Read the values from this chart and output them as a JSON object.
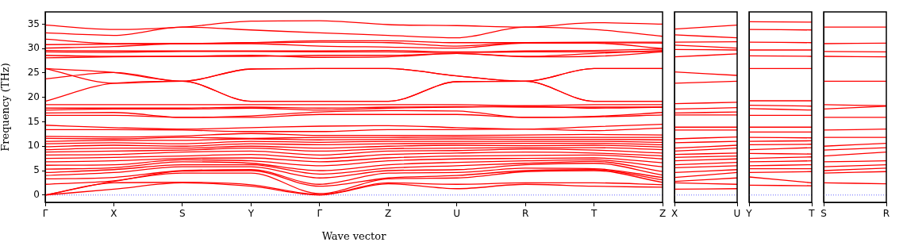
{
  "chart_data": [
    {
      "type": "line",
      "xlabel": "Wave vector",
      "ylabel": "Frequency (THz)",
      "marker": "none",
      "line_style": "solid",
      "categories": [
        "Γ",
        "X",
        "S",
        "Y",
        "Γ",
        "Z",
        "U",
        "R",
        "T",
        "Z"
      ],
      "ylim": [
        -1.5,
        37.5
      ],
      "yticks": [
        0,
        5,
        10,
        15,
        20,
        25,
        30,
        35
      ],
      "ref_lines": [
        {
          "axis": "y",
          "value": 0,
          "color": "#6666ff",
          "line_style": "dotted"
        }
      ],
      "series": [
        {
          "color": "#ff0000",
          "values": [
            0,
            1.2,
            2.5,
            1.8,
            0,
            2.3,
            1.3,
            2.2,
            1.8,
            1.6
          ]
        },
        {
          "color": "#ff0000",
          "values": [
            0,
            2.5,
            2.6,
            2.1,
            0.1,
            2.5,
            2.2,
            2.5,
            2.5,
            2.1
          ]
        },
        {
          "color": "#ff0000",
          "values": [
            0,
            2.8,
            4.5,
            4.5,
            0.3,
            3.3,
            3.5,
            4.8,
            5.0,
            2.6
          ]
        },
        {
          "color": "#ff0000",
          "values": [
            2.2,
            2.9,
            4.9,
            5.0,
            1.8,
            3.5,
            4.0,
            5.0,
            5.2,
            3.1
          ]
        },
        {
          "color": "#ff0000",
          "values": [
            3.3,
            3.6,
            5.0,
            5.2,
            2.2,
            4.5,
            4.6,
            5.5,
            5.4,
            3.6
          ]
        },
        {
          "color": "#ff0000",
          "values": [
            4.0,
            4.6,
            5.8,
            5.8,
            3.5,
            5.0,
            5.2,
            6.2,
            6.5,
            4.1
          ]
        },
        {
          "color": "#ff0000",
          "values": [
            4.6,
            5.2,
            6.2,
            6.2,
            4.3,
            5.5,
            6.0,
            6.5,
            6.9,
            4.8
          ]
        },
        {
          "color": "#ff0000",
          "values": [
            5.3,
            5.6,
            6.8,
            6.5,
            5.0,
            6.2,
            6.7,
            7.0,
            7.2,
            5.8
          ]
        },
        {
          "color": "#ff0000",
          "values": [
            6.1,
            6.2,
            7.2,
            7.0,
            6.0,
            7.0,
            7.4,
            7.5,
            7.6,
            6.6
          ]
        },
        {
          "color": "#ff0000",
          "values": [
            6.8,
            7.0,
            7.5,
            7.6,
            6.8,
            7.6,
            8.0,
            8.1,
            8.2,
            7.4
          ]
        },
        {
          "color": "#ff0000",
          "values": [
            7.5,
            7.7,
            8.0,
            8.3,
            7.5,
            8.3,
            8.6,
            8.8,
            8.6,
            8.0
          ]
        },
        {
          "color": "#ff0000",
          "values": [
            8.2,
            8.3,
            8.8,
            9.0,
            8.2,
            9.0,
            9.1,
            9.4,
            9.2,
            8.6
          ]
        },
        {
          "color": "#ff0000",
          "values": [
            8.8,
            9.0,
            9.2,
            9.6,
            9.0,
            9.5,
            9.6,
            9.7,
            9.7,
            9.3
          ]
        },
        {
          "color": "#ff0000",
          "values": [
            9.3,
            9.6,
            9.6,
            10.0,
            9.6,
            10.0,
            10.2,
            10.1,
            10.2,
            9.8
          ]
        },
        {
          "color": "#ff0000",
          "values": [
            9.9,
            10.2,
            10.0,
            10.5,
            10.3,
            10.5,
            10.6,
            10.6,
            10.6,
            10.3
          ]
        },
        {
          "color": "#ff0000",
          "values": [
            10.5,
            10.7,
            10.5,
            11.0,
            10.8,
            11.0,
            11.0,
            11.0,
            11.0,
            10.8
          ]
        },
        {
          "color": "#ff0000",
          "values": [
            11.0,
            11.2,
            11.2,
            11.5,
            11.3,
            11.4,
            11.5,
            11.4,
            11.4,
            11.3
          ]
        },
        {
          "color": "#ff0000",
          "values": [
            11.6,
            11.5,
            11.8,
            11.6,
            11.8,
            11.8,
            11.9,
            11.8,
            11.8,
            11.8
          ]
        },
        {
          "color": "#ff0000",
          "values": [
            12.0,
            11.9,
            12.1,
            12.6,
            12.2,
            12.2,
            12.2,
            12.3,
            12.4,
            12.3
          ]
        },
        {
          "color": "#ff0000",
          "values": [
            13.4,
            13.4,
            13.3,
            13.0,
            13.0,
            13.4,
            13.4,
            13.5,
            13.2,
            13.7
          ]
        },
        {
          "color": "#ff0000",
          "values": [
            14.3,
            13.8,
            13.5,
            13.8,
            14.1,
            14.2,
            13.8,
            13.5,
            14.0,
            14.5
          ]
        },
        {
          "color": "#ff0000",
          "values": [
            16.3,
            16.3,
            15.9,
            15.9,
            16.5,
            16.5,
            16.5,
            15.9,
            16.0,
            16.4
          ]
        },
        {
          "color": "#ff0000",
          "values": [
            16.8,
            16.9,
            15.9,
            16.2,
            17.0,
            17.3,
            17.2,
            15.9,
            16.1,
            16.9
          ]
        },
        {
          "color": "#ff0000",
          "values": [
            17.4,
            17.6,
            17.6,
            17.8,
            17.4,
            17.8,
            18.0,
            18.2,
            17.8,
            18.0
          ]
        },
        {
          "color": "#ff0000",
          "values": [
            17.8,
            17.8,
            17.8,
            18.0,
            17.8,
            18.0,
            18.1,
            18.0,
            18.0,
            18.0
          ]
        },
        {
          "color": "#ff0000",
          "values": [
            18.5,
            18.5,
            18.5,
            18.5,
            18.5,
            18.5,
            18.5,
            18.3,
            18.5,
            18.5
          ]
        },
        {
          "color": "#ff0000",
          "values": [
            19.2,
            22.9,
            23.3,
            19.2,
            19.2,
            19.2,
            23.2,
            23.3,
            19.2,
            19.2
          ]
        },
        {
          "color": "#ff0000",
          "values": [
            25.9,
            22.9,
            23.3,
            19.2,
            19.2,
            19.2,
            23.2,
            23.3,
            19.2,
            19.2
          ]
        },
        {
          "color": "#ff0000",
          "values": [
            23.8,
            25.1,
            23.3,
            25.8,
            25.9,
            25.9,
            24.4,
            23.3,
            25.9,
            25.9
          ]
        },
        {
          "color": "#ff0000",
          "values": [
            25.9,
            25.1,
            23.3,
            25.8,
            25.9,
            25.9,
            24.4,
            23.3,
            25.9,
            25.9
          ]
        },
        {
          "color": "#ff0000",
          "values": [
            28.1,
            28.3,
            28.4,
            28.6,
            28.2,
            28.3,
            29.0,
            28.3,
            28.4,
            29.3
          ]
        },
        {
          "color": "#ff0000",
          "values": [
            28.6,
            28.4,
            28.4,
            28.4,
            28.6,
            28.6,
            29.0,
            28.4,
            29.0,
            29.6
          ]
        },
        {
          "color": "#ff0000",
          "values": [
            29.3,
            29.2,
            29.4,
            29.4,
            29.3,
            29.3,
            29.2,
            29.3,
            29.3,
            29.4
          ]
        },
        {
          "color": "#ff0000",
          "values": [
            29.6,
            29.5,
            29.5,
            29.5,
            29.5,
            29.6,
            29.3,
            29.5,
            29.6,
            29.9
          ]
        },
        {
          "color": "#ff0000",
          "values": [
            30.1,
            30.4,
            31.0,
            31.0,
            30.5,
            30.3,
            30.1,
            31.1,
            31.1,
            30.0
          ]
        },
        {
          "color": "#ff0000",
          "values": [
            30.8,
            30.9,
            31.0,
            31.2,
            31.3,
            31.2,
            30.5,
            31.2,
            31.2,
            31.1
          ]
        },
        {
          "color": "#ff0000",
          "values": [
            31.9,
            31.0,
            31.0,
            31.2,
            31.6,
            31.6,
            31.2,
            31.2,
            31.3,
            31.3
          ]
        },
        {
          "color": "#ff0000",
          "values": [
            33.2,
            32.7,
            34.4,
            33.8,
            33.2,
            32.7,
            32.2,
            34.4,
            33.9,
            32.5
          ]
        },
        {
          "color": "#ff0000",
          "values": [
            34.8,
            33.9,
            34.4,
            35.6,
            35.7,
            34.9,
            34.7,
            34.4,
            35.3,
            35.0
          ]
        }
      ]
    },
    {
      "type": "line",
      "marker": "none",
      "line_style": "solid",
      "tick_labels": "x",
      "categories": [
        "X",
        "U"
      ],
      "ylim": [
        -1.5,
        37.5
      ],
      "ref_lines": [
        {
          "axis": "y",
          "value": 0,
          "color": "#6666ff",
          "line_style": "dotted"
        }
      ],
      "series": [
        {
          "color": "#ff0000",
          "values": [
            1.2,
            1.3
          ]
        },
        {
          "color": "#ff0000",
          "values": [
            2.5,
            2.2
          ]
        },
        {
          "color": "#ff0000",
          "values": [
            2.8,
            3.5
          ]
        },
        {
          "color": "#ff0000",
          "values": [
            3.6,
            4.6
          ]
        },
        {
          "color": "#ff0000",
          "values": [
            4.6,
            5.2
          ]
        },
        {
          "color": "#ff0000",
          "values": [
            5.6,
            6.0
          ]
        },
        {
          "color": "#ff0000",
          "values": [
            6.2,
            6.7
          ]
        },
        {
          "color": "#ff0000",
          "values": [
            7.0,
            7.4
          ]
        },
        {
          "color": "#ff0000",
          "values": [
            7.7,
            8.0
          ]
        },
        {
          "color": "#ff0000",
          "values": [
            8.3,
            8.6
          ]
        },
        {
          "color": "#ff0000",
          "values": [
            9.0,
            9.6
          ]
        },
        {
          "color": "#ff0000",
          "values": [
            9.6,
            10.2
          ]
        },
        {
          "color": "#ff0000",
          "values": [
            10.7,
            11.0
          ]
        },
        {
          "color": "#ff0000",
          "values": [
            11.5,
            11.9
          ]
        },
        {
          "color": "#ff0000",
          "values": [
            13.3,
            13.3
          ]
        },
        {
          "color": "#ff0000",
          "values": [
            13.9,
            13.9
          ]
        },
        {
          "color": "#ff0000",
          "values": [
            16.4,
            16.4
          ]
        },
        {
          "color": "#ff0000",
          "values": [
            16.8,
            17.0
          ]
        },
        {
          "color": "#ff0000",
          "values": [
            17.6,
            17.9
          ]
        },
        {
          "color": "#ff0000",
          "values": [
            18.7,
            19.0
          ]
        },
        {
          "color": "#ff0000",
          "values": [
            22.9,
            23.3
          ]
        },
        {
          "color": "#ff0000",
          "values": [
            25.2,
            24.5
          ]
        },
        {
          "color": "#ff0000",
          "values": [
            28.3,
            28.9
          ]
        },
        {
          "color": "#ff0000",
          "values": [
            29.8,
            29.7
          ]
        },
        {
          "color": "#ff0000",
          "values": [
            30.7,
            30.1
          ]
        },
        {
          "color": "#ff0000",
          "values": [
            31.3,
            31.4
          ]
        },
        {
          "color": "#ff0000",
          "values": [
            32.8,
            32.2
          ]
        },
        {
          "color": "#ff0000",
          "values": [
            34.0,
            34.8
          ]
        }
      ]
    },
    {
      "type": "line",
      "marker": "none",
      "line_style": "solid",
      "tick_labels": "x",
      "categories": [
        "Y",
        "T"
      ],
      "ylim": [
        -1.5,
        37.5
      ],
      "ref_lines": [
        {
          "axis": "y",
          "value": 0,
          "color": "#6666ff",
          "line_style": "dotted"
        }
      ],
      "series": [
        {
          "color": "#ff0000",
          "values": [
            2.0,
            1.9
          ]
        },
        {
          "color": "#ff0000",
          "values": [
            3.7,
            2.5
          ]
        },
        {
          "color": "#ff0000",
          "values": [
            4.6,
            4.8
          ]
        },
        {
          "color": "#ff0000",
          "values": [
            5.4,
            5.4
          ]
        },
        {
          "color": "#ff0000",
          "values": [
            6.0,
            6.2
          ]
        },
        {
          "color": "#ff0000",
          "values": [
            6.8,
            7.0
          ]
        },
        {
          "color": "#ff0000",
          "values": [
            7.5,
            7.8
          ]
        },
        {
          "color": "#ff0000",
          "values": [
            8.5,
            8.4
          ]
        },
        {
          "color": "#ff0000",
          "values": [
            9.3,
            9.7
          ]
        },
        {
          "color": "#ff0000",
          "values": [
            10.3,
            10.4
          ]
        },
        {
          "color": "#ff0000",
          "values": [
            11.0,
            11.1
          ]
        },
        {
          "color": "#ff0000",
          "values": [
            11.8,
            11.7
          ]
        },
        {
          "color": "#ff0000",
          "values": [
            12.9,
            12.9
          ]
        },
        {
          "color": "#ff0000",
          "values": [
            13.9,
            13.9
          ]
        },
        {
          "color": "#ff0000",
          "values": [
            16.3,
            16.3
          ]
        },
        {
          "color": "#ff0000",
          "values": [
            17.7,
            17.4
          ]
        },
        {
          "color": "#ff0000",
          "values": [
            18.4,
            18.2
          ]
        },
        {
          "color": "#ff0000",
          "values": [
            19.3,
            19.3
          ]
        },
        {
          "color": "#ff0000",
          "values": [
            25.9,
            25.9
          ]
        },
        {
          "color": "#ff0000",
          "values": [
            28.5,
            28.4
          ]
        },
        {
          "color": "#ff0000",
          "values": [
            29.7,
            29.7
          ]
        },
        {
          "color": "#ff0000",
          "values": [
            31.3,
            31.2
          ]
        },
        {
          "color": "#ff0000",
          "values": [
            33.9,
            33.8
          ]
        },
        {
          "color": "#ff0000",
          "values": [
            35.5,
            35.4
          ]
        }
      ]
    },
    {
      "type": "line",
      "marker": "none",
      "line_style": "solid",
      "tick_labels": "x",
      "categories": [
        "S",
        "R"
      ],
      "ylim": [
        -1.5,
        37.5
      ],
      "ref_lines": [
        {
          "axis": "y",
          "value": 0,
          "color": "#6666ff",
          "line_style": "dotted"
        }
      ],
      "series": [
        {
          "color": "#ff0000",
          "values": [
            2.5,
            2.3
          ]
        },
        {
          "color": "#ff0000",
          "values": [
            4.5,
            4.8
          ]
        },
        {
          "color": "#ff0000",
          "values": [
            5.0,
            5.5
          ]
        },
        {
          "color": "#ff0000",
          "values": [
            5.8,
            6.2
          ]
        },
        {
          "color": "#ff0000",
          "values": [
            6.8,
            7.0
          ]
        },
        {
          "color": "#ff0000",
          "values": [
            8.0,
            8.8
          ]
        },
        {
          "color": "#ff0000",
          "values": [
            9.2,
            9.7
          ]
        },
        {
          "color": "#ff0000",
          "values": [
            10.0,
            10.6
          ]
        },
        {
          "color": "#ff0000",
          "values": [
            11.8,
            11.8
          ]
        },
        {
          "color": "#ff0000",
          "values": [
            13.3,
            13.5
          ]
        },
        {
          "color": "#ff0000",
          "values": [
            15.9,
            15.9
          ]
        },
        {
          "color": "#ff0000",
          "values": [
            17.6,
            18.2
          ]
        },
        {
          "color": "#ff0000",
          "values": [
            18.5,
            18.3
          ]
        },
        {
          "color": "#ff0000",
          "values": [
            23.3,
            23.3
          ]
        },
        {
          "color": "#ff0000",
          "values": [
            28.4,
            28.3
          ]
        },
        {
          "color": "#ff0000",
          "values": [
            29.4,
            29.3
          ]
        },
        {
          "color": "#ff0000",
          "values": [
            31.0,
            31.1
          ]
        },
        {
          "color": "#ff0000",
          "values": [
            34.4,
            34.4
          ]
        }
      ]
    }
  ]
}
